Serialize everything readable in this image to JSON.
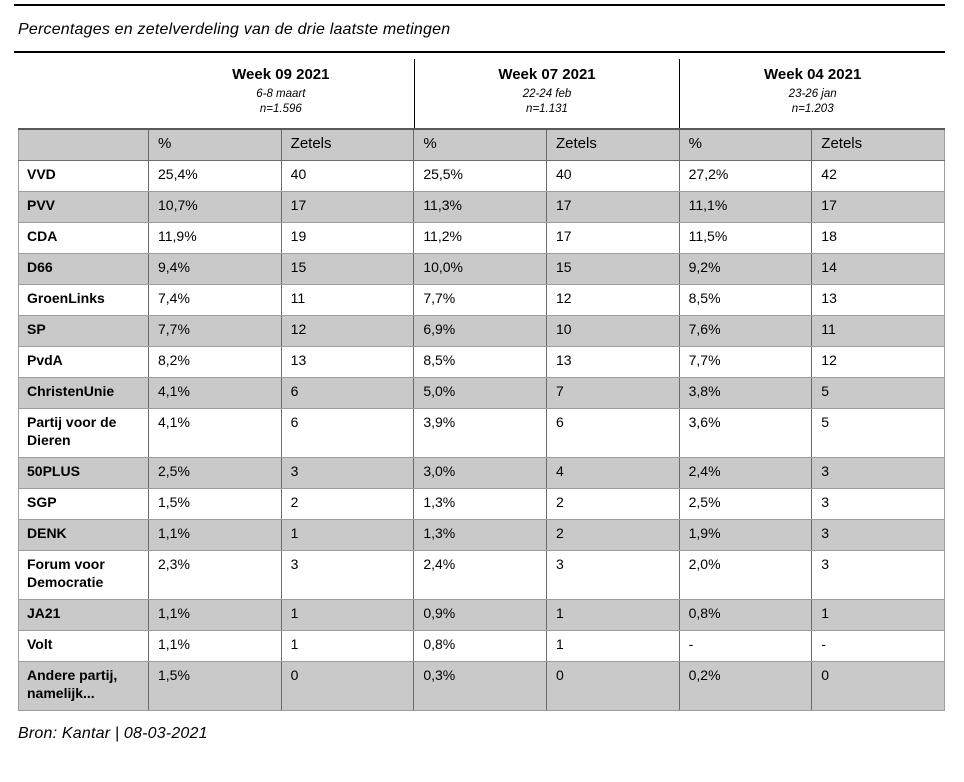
{
  "colors": {
    "shaded_row_bg": "#c9c9c9",
    "header_row_bg": "#c9c9c9",
    "header_top_border": "#595959",
    "cell_border_vertical": "#6b6b6b",
    "cell_border_horizontal": "#9d9d9d",
    "rule_color": "#000000",
    "text_color": "#000000"
  },
  "chart_data": {
    "type": "table",
    "title": "Percentages en zetelverdeling van de drie laatste metingen",
    "source": "Bron: Kantar | 08-03-2021",
    "column_groups": [
      {
        "label": "Week 09 2021",
        "period": "6-8 maart",
        "sample": "n=1.596"
      },
      {
        "label": "Week 07 2021",
        "period": "22-24 feb",
        "sample": "n=1.131"
      },
      {
        "label": "Week 04 2021",
        "period": "23-26 jan",
        "sample": "n=1.203"
      }
    ],
    "sub_columns": [
      "%",
      "Zetels",
      "%",
      "Zetels",
      "%",
      "Zetels"
    ],
    "rows": [
      {
        "party": "VVD",
        "values": [
          "25,4%",
          "40",
          "25,5%",
          "40",
          "27,2%",
          "42"
        ]
      },
      {
        "party": "PVV",
        "values": [
          "10,7%",
          "17",
          "11,3%",
          "17",
          "11,1%",
          "17"
        ]
      },
      {
        "party": "CDA",
        "values": [
          "11,9%",
          "19",
          "11,2%",
          "17",
          "11,5%",
          "18"
        ]
      },
      {
        "party": "D66",
        "values": [
          "9,4%",
          "15",
          "10,0%",
          "15",
          "9,2%",
          "14"
        ]
      },
      {
        "party": "GroenLinks",
        "values": [
          "7,4%",
          "11",
          "7,7%",
          "12",
          "8,5%",
          "13"
        ]
      },
      {
        "party": "SP",
        "values": [
          "7,7%",
          "12",
          "6,9%",
          "10",
          "7,6%",
          "11"
        ]
      },
      {
        "party": "PvdA",
        "values": [
          "8,2%",
          "13",
          "8,5%",
          "13",
          "7,7%",
          "12"
        ]
      },
      {
        "party": "ChristenUnie",
        "values": [
          "4,1%",
          "6",
          "5,0%",
          "7",
          "3,8%",
          "5"
        ]
      },
      {
        "party": "Partij voor de Dieren",
        "values": [
          "4,1%",
          "6",
          "3,9%",
          "6",
          "3,6%",
          "5"
        ]
      },
      {
        "party": "50PLUS",
        "values": [
          "2,5%",
          "3",
          "3,0%",
          "4",
          "2,4%",
          "3"
        ]
      },
      {
        "party": "SGP",
        "values": [
          "1,5%",
          "2",
          "1,3%",
          "2",
          "2,5%",
          "3"
        ]
      },
      {
        "party": "DENK",
        "values": [
          "1,1%",
          "1",
          "1,3%",
          "2",
          "1,9%",
          "3"
        ]
      },
      {
        "party": "Forum voor Democratie",
        "values": [
          "2,3%",
          "3",
          "2,4%",
          "3",
          "2,0%",
          "3"
        ]
      },
      {
        "party": "JA21",
        "values": [
          "1,1%",
          "1",
          "0,9%",
          "1",
          "0,8%",
          "1"
        ]
      },
      {
        "party": "Volt",
        "values": [
          "1,1%",
          "1",
          "0,8%",
          "1",
          "-",
          "-"
        ]
      },
      {
        "party": "Andere partij, namelijk...",
        "values": [
          "1,5%",
          "0",
          "0,3%",
          "0",
          "0,2%",
          "0"
        ]
      }
    ]
  }
}
